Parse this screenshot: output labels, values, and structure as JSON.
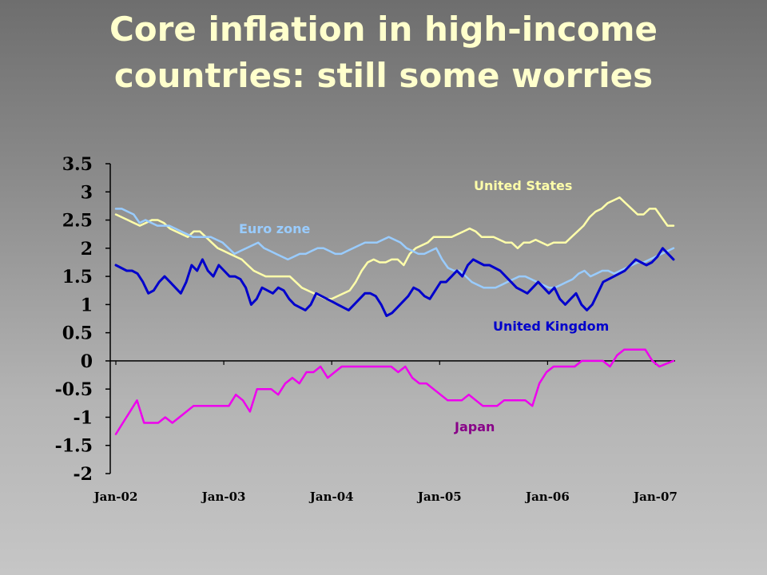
{
  "slide": {
    "title_line1": "Core inflation in high-income",
    "title_line2": "countries: still some worries"
  },
  "chart_data": {
    "type": "line",
    "title": "Core inflation in high-income countries: still some worries",
    "xlabel": "",
    "ylabel": "",
    "ylim": [
      -2,
      3.5
    ],
    "ytick_labels": [
      "3.5",
      "3",
      "2.5",
      "2",
      "1.5",
      "1",
      "0.5",
      "0",
      "-0.5",
      "-1",
      "-1.5",
      "-2"
    ],
    "yticks": [
      3.5,
      3,
      2.5,
      2,
      1.5,
      1,
      0.5,
      0,
      -0.5,
      -1,
      -1.5,
      -2
    ],
    "xtick_labels": [
      "Jan-02",
      "Jan-03",
      "Jan-04",
      "Jan-05",
      "Jan-06",
      "Jan-07"
    ],
    "x_start": "Jan-02",
    "x_frequency": "monthly",
    "grid": false,
    "legend": "direct labels",
    "series": [
      {
        "name": "United States",
        "color": "#ffffaa",
        "values": [
          2.6,
          2.55,
          2.5,
          2.45,
          2.4,
          2.45,
          2.5,
          2.5,
          2.45,
          2.35,
          2.3,
          2.25,
          2.2,
          2.3,
          2.3,
          2.2,
          2.1,
          2.0,
          1.95,
          1.9,
          1.85,
          1.8,
          1.7,
          1.6,
          1.55,
          1.5,
          1.5,
          1.5,
          1.5,
          1.5,
          1.4,
          1.3,
          1.25,
          1.2,
          1.15,
          1.1,
          1.1,
          1.15,
          1.2,
          1.25,
          1.4,
          1.6,
          1.75,
          1.8,
          1.75,
          1.75,
          1.8,
          1.8,
          1.7,
          1.9,
          2.0,
          2.05,
          2.1,
          2.2,
          2.2,
          2.2,
          2.2,
          2.25,
          2.3,
          2.35,
          2.3,
          2.2,
          2.2,
          2.2,
          2.15,
          2.1,
          2.1,
          2.0,
          2.1,
          2.1,
          2.15,
          2.1,
          2.05,
          2.1,
          2.1,
          2.1,
          2.2,
          2.3,
          2.4,
          2.55,
          2.65,
          2.7,
          2.8,
          2.85,
          2.9,
          2.8,
          2.7,
          2.6,
          2.6,
          2.7,
          2.7,
          2.55,
          2.4,
          2.4
        ]
      },
      {
        "name": "Euro zone",
        "color": "#99ccff",
        "values": [
          2.7,
          2.7,
          2.65,
          2.6,
          2.45,
          2.5,
          2.45,
          2.4,
          2.4,
          2.4,
          2.35,
          2.3,
          2.25,
          2.2,
          2.2,
          2.2,
          2.2,
          2.15,
          2.1,
          2.0,
          1.9,
          1.95,
          2.0,
          2.05,
          2.1,
          2.0,
          1.95,
          1.9,
          1.85,
          1.8,
          1.85,
          1.9,
          1.9,
          1.95,
          2.0,
          2.0,
          1.95,
          1.9,
          1.9,
          1.95,
          2.0,
          2.05,
          2.1,
          2.1,
          2.1,
          2.15,
          2.2,
          2.15,
          2.1,
          2.0,
          1.95,
          1.9,
          1.9,
          1.95,
          2.0,
          1.8,
          1.65,
          1.6,
          1.6,
          1.5,
          1.4,
          1.35,
          1.3,
          1.3,
          1.3,
          1.35,
          1.4,
          1.45,
          1.5,
          1.5,
          1.45,
          1.4,
          1.35,
          1.3,
          1.3,
          1.35,
          1.4,
          1.45,
          1.55,
          1.6,
          1.5,
          1.55,
          1.6,
          1.6,
          1.55,
          1.6,
          1.65,
          1.7,
          1.75,
          1.75,
          1.8,
          1.85,
          1.9,
          1.95,
          2.0
        ]
      },
      {
        "name": "United Kingdom",
        "color": "#0000cc",
        "values": [
          1.7,
          1.65,
          1.6,
          1.6,
          1.55,
          1.4,
          1.2,
          1.25,
          1.4,
          1.5,
          1.4,
          1.3,
          1.2,
          1.4,
          1.7,
          1.6,
          1.8,
          1.6,
          1.5,
          1.7,
          1.6,
          1.5,
          1.5,
          1.45,
          1.3,
          1.0,
          1.1,
          1.3,
          1.25,
          1.2,
          1.3,
          1.25,
          1.1,
          1.0,
          0.95,
          0.9,
          1.0,
          1.2,
          1.15,
          1.1,
          1.05,
          1.0,
          0.95,
          0.9,
          1.0,
          1.1,
          1.2,
          1.2,
          1.15,
          1.0,
          0.8,
          0.85,
          0.95,
          1.05,
          1.15,
          1.3,
          1.25,
          1.15,
          1.1,
          1.25,
          1.4,
          1.4,
          1.5,
          1.6,
          1.5,
          1.7,
          1.8,
          1.75,
          1.7,
          1.7,
          1.65,
          1.6,
          1.5,
          1.4,
          1.3,
          1.25,
          1.2,
          1.3,
          1.4,
          1.3,
          1.2,
          1.3,
          1.1,
          1.0,
          1.1,
          1.2,
          1.0,
          0.9,
          1.0,
          1.2,
          1.4,
          1.45,
          1.5,
          1.55,
          1.6,
          1.7,
          1.8,
          1.75,
          1.7,
          1.75,
          1.85,
          2.0,
          1.9,
          1.8
        ]
      },
      {
        "name": "Japan",
        "color": "#ee00ee",
        "values": [
          -1.3,
          -1.1,
          -0.9,
          -0.7,
          -1.1,
          -1.1,
          -1.1,
          -1.0,
          -1.1,
          -1.0,
          -0.9,
          -0.8,
          -0.8,
          -0.8,
          -0.8,
          -0.8,
          -0.8,
          -0.6,
          -0.7,
          -0.9,
          -0.5,
          -0.5,
          -0.5,
          -0.6,
          -0.4,
          -0.3,
          -0.4,
          -0.2,
          -0.2,
          -0.1,
          -0.3,
          -0.2,
          -0.1,
          -0.1,
          -0.1,
          -0.1,
          -0.1,
          -0.1,
          -0.1,
          -0.1,
          -0.2,
          -0.1,
          -0.3,
          -0.4,
          -0.4,
          -0.5,
          -0.6,
          -0.7,
          -0.7,
          -0.7,
          -0.6,
          -0.7,
          -0.8,
          -0.8,
          -0.8,
          -0.7,
          -0.7,
          -0.7,
          -0.7,
          -0.8,
          -0.4,
          -0.2,
          -0.1,
          -0.1,
          -0.1,
          -0.1,
          0.0,
          0.0,
          0.0,
          0.0,
          -0.1,
          0.1,
          0.2,
          0.2,
          0.2,
          0.2,
          0.0,
          -0.1,
          -0.05,
          0.0
        ]
      }
    ]
  }
}
